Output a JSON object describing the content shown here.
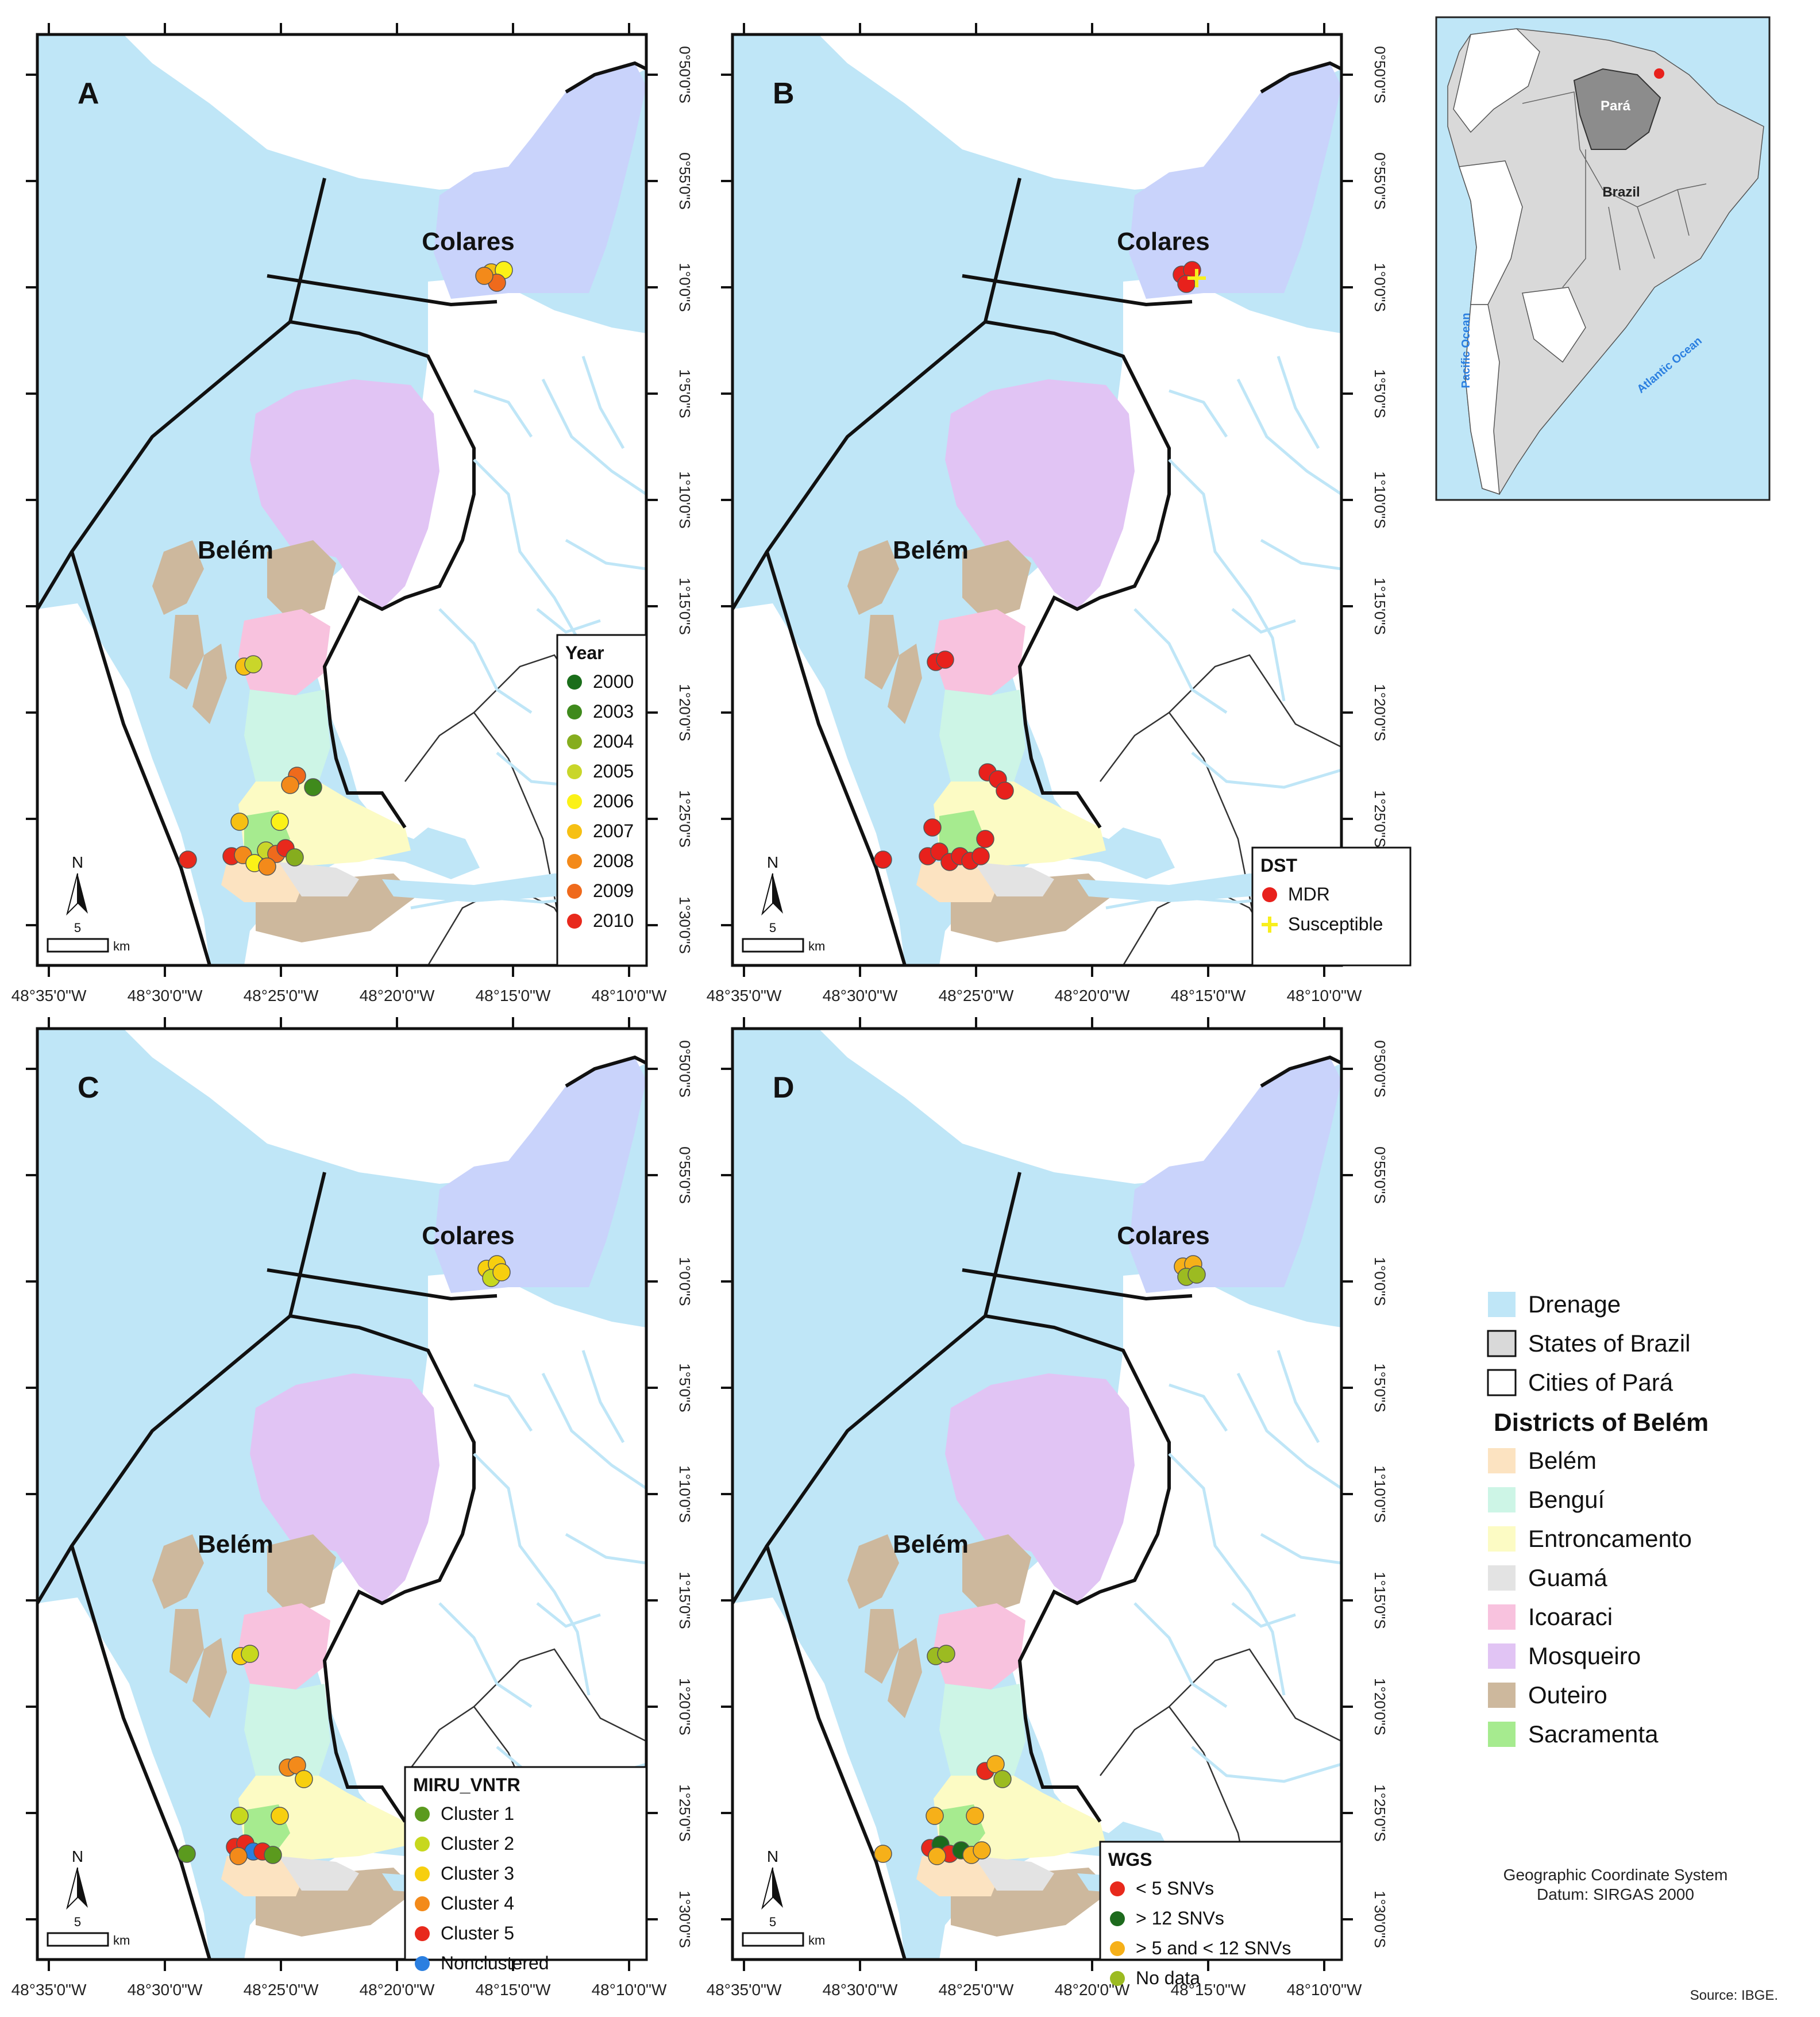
{
  "colors": {
    "drainage": "#bfe6f7",
    "states": "#d9d9d9",
    "cities": "#ffffff",
    "belem_district": "#fce3c1",
    "bengui": "#cdf5e6",
    "entroncamento": "#fcfbc4",
    "guama": "#e3e3e3",
    "icoaraci": "#f8c2de",
    "mosqueiro": "#e1c4f4",
    "outeiro": "#cdb89d",
    "sacramenta": "#a6eb8f",
    "colares": "#c9d3fb",
    "para": "#8c8c8c"
  },
  "panels": [
    {
      "letter": "A",
      "legend_title": "Year",
      "legend_items": [
        {
          "label": "2000",
          "color": "#1a6e1a"
        },
        {
          "label": "2003",
          "color": "#3f8a1c"
        },
        {
          "label": "2004",
          "color": "#86ad1e"
        },
        {
          "label": "2005",
          "color": "#c9d62a"
        },
        {
          "label": "2006",
          "color": "#fbf117"
        },
        {
          "label": "2007",
          "color": "#f6c013"
        },
        {
          "label": "2008",
          "color": "#f38a1a"
        },
        {
          "label": "2009",
          "color": "#ef6a1c"
        },
        {
          "label": "2010",
          "color": "#e8291c"
        }
      ]
    },
    {
      "letter": "B",
      "legend_title": "DST",
      "legend_items": [
        {
          "label": "MDR",
          "color": "#e8211c",
          "marker": "dot"
        },
        {
          "label": "Susceptible",
          "color": "#f8ef1c",
          "marker": "cross"
        }
      ]
    },
    {
      "letter": "C",
      "legend_title": "MIRU_VNTR",
      "legend_items": [
        {
          "label": "Cluster 1",
          "color": "#5b9a1e"
        },
        {
          "label": "Cluster 2",
          "color": "#c7d81e"
        },
        {
          "label": "Cluster 3",
          "color": "#f7cf0f"
        },
        {
          "label": "Cluster 4",
          "color": "#f38a1a"
        },
        {
          "label": "Cluster 5",
          "color": "#e8291c"
        },
        {
          "label": "Nonclustered",
          "color": "#2b7fe0"
        }
      ]
    },
    {
      "letter": "D",
      "legend_title": "WGS",
      "legend_items": [
        {
          "label": "< 5 SNVs",
          "color": "#e8291c"
        },
        {
          "label": "> 12 SNVs",
          "color": "#1d6a1d"
        },
        {
          "label": "> 5 and < 12 SNVs",
          "color": "#f6b019"
        },
        {
          "label": "No data",
          "color": "#9cbb21"
        }
      ]
    }
  ],
  "city_labels": {
    "colares": "Colares",
    "belem": "Belém"
  },
  "north_label": "N",
  "scale_value": "5",
  "scale_unit": "km",
  "lat_ticks": [
    "0°50'0\"S",
    "0°55'0\"S",
    "1°0'0\"S",
    "1°5'0\"S",
    "1°10'0\"S",
    "1°15'0\"S",
    "1°20'0\"S",
    "1°25'0\"S",
    "1°30'0\"S"
  ],
  "lon_ticks": [
    "48°35'0\"W",
    "48°30'0\"W",
    "48°25'0\"W",
    "48°20'0\"W",
    "48°15'0\"W",
    "48°10'0\"W"
  ],
  "inset": {
    "para_label": "Pará",
    "brazil_label": "Brazil",
    "pacific_label": "Pacific Ocean",
    "atlantic_label": "Atlantic Ocean"
  },
  "main_legend": {
    "drainage": "Drenage",
    "states": "States of Brazil",
    "cities": "Cities of Pará",
    "districts_title": "Districts of Belém",
    "districts": [
      "Belém",
      "Benguí",
      "Entroncamento",
      "Guamá",
      "Icoaraci",
      "Mosqueiro",
      "Outeiro",
      "Sacramenta"
    ]
  },
  "coord_system": "Geographic Coordinate System",
  "datum": "Datum: SIRGAS 2000",
  "source": "Source: IBGE."
}
